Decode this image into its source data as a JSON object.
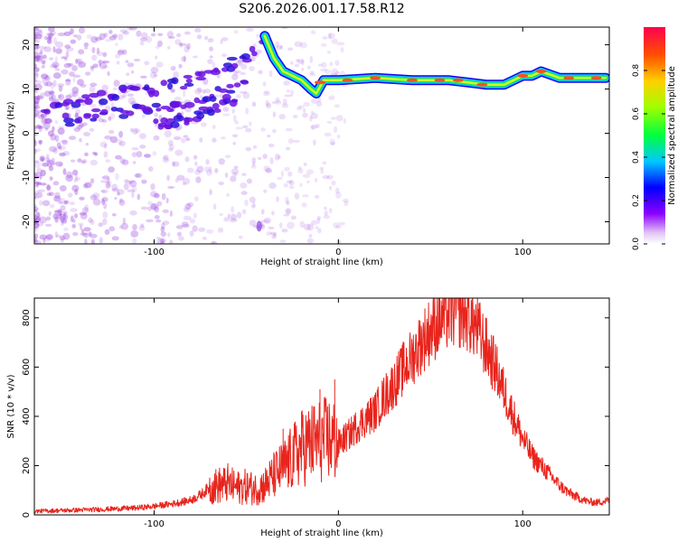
{
  "figure_title": "S206.2026.001.17.58.R12",
  "chart_data": [
    {
      "type": "heatmap",
      "name": "spectrogram",
      "xlabel": "Height of straight line (km)",
      "ylabel": "Frequency (Hz)",
      "xlim": [
        -165,
        147
      ],
      "ylim": [
        -25,
        24
      ],
      "x_ticks": [
        -100,
        0,
        100
      ],
      "y_ticks": [
        -20,
        -10,
        0,
        10,
        20
      ],
      "colorbar": {
        "label": "Normalized spectral amplitude",
        "range": [
          0,
          1
        ],
        "ticks": [
          "0.0",
          "0.2",
          "0.4",
          "0.6",
          "0.8"
        ]
      },
      "ridge_line": {
        "x": [
          -40,
          -35,
          -30,
          -25,
          -20,
          -15,
          -12,
          -8,
          0,
          20,
          40,
          60,
          70,
          80,
          90,
          100,
          105,
          110,
          120,
          135,
          145
        ],
        "y": [
          22,
          17,
          14,
          13,
          12,
          10,
          9,
          12,
          12,
          12.5,
          12,
          12,
          11.5,
          11,
          11,
          13,
          13,
          14,
          12.5,
          12.5,
          12.5
        ]
      },
      "lower_branches": [
        {
          "x": [
            -160,
            -140,
            -120,
            -100,
            -80,
            -60,
            -42
          ],
          "y": [
            5,
            7,
            9,
            10,
            12,
            15,
            20
          ]
        },
        {
          "x": [
            -150,
            -130,
            -110,
            -90,
            -70,
            -50
          ],
          "y": [
            3,
            4,
            5,
            6,
            8,
            12
          ]
        },
        {
          "x": [
            -100,
            -85,
            -70,
            -55
          ],
          "y": [
            2,
            3,
            5,
            8
          ]
        }
      ]
    },
    {
      "type": "line",
      "name": "snr",
      "xlabel": "Height of straight line (km)",
      "ylabel": "SNR (10 * v/v)",
      "xlim": [
        -165,
        147
      ],
      "ylim": [
        0,
        880
      ],
      "x_ticks": [
        -100,
        0,
        100
      ],
      "y_ticks": [
        0,
        200,
        400,
        600,
        800
      ],
      "series": [
        {
          "name": "SNR",
          "color": "#e8241c",
          "x": [
            -165,
            -150,
            -130,
            -110,
            -100,
            -90,
            -80,
            -75,
            -70,
            -65,
            -60,
            -55,
            -50,
            -45,
            -40,
            -35,
            -30,
            -25,
            -20,
            -15,
            -10,
            -5,
            0,
            5,
            10,
            15,
            20,
            25,
            30,
            35,
            40,
            45,
            50,
            55,
            60,
            65,
            70,
            75,
            80,
            85,
            90,
            95,
            100,
            105,
            110,
            115,
            120,
            125,
            130,
            135,
            140,
            147
          ],
          "values": [
            15,
            18,
            22,
            28,
            35,
            45,
            60,
            80,
            110,
            120,
            125,
            110,
            115,
            105,
            120,
            160,
            190,
            230,
            270,
            290,
            300,
            310,
            290,
            320,
            360,
            390,
            420,
            480,
            530,
            590,
            640,
            700,
            750,
            790,
            820,
            830,
            810,
            760,
            680,
            600,
            500,
            400,
            310,
            240,
            200,
            160,
            120,
            90,
            70,
            55,
            50,
            60
          ]
        }
      ],
      "spikes": [
        {
          "x": -60,
          "y": 210
        },
        {
          "x": -30,
          "y": 350
        },
        {
          "x": -20,
          "y": 420
        },
        {
          "x": -10,
          "y": 510
        },
        {
          "x": -2,
          "y": 550
        },
        {
          "x": 65,
          "y": 880
        }
      ]
    }
  ]
}
